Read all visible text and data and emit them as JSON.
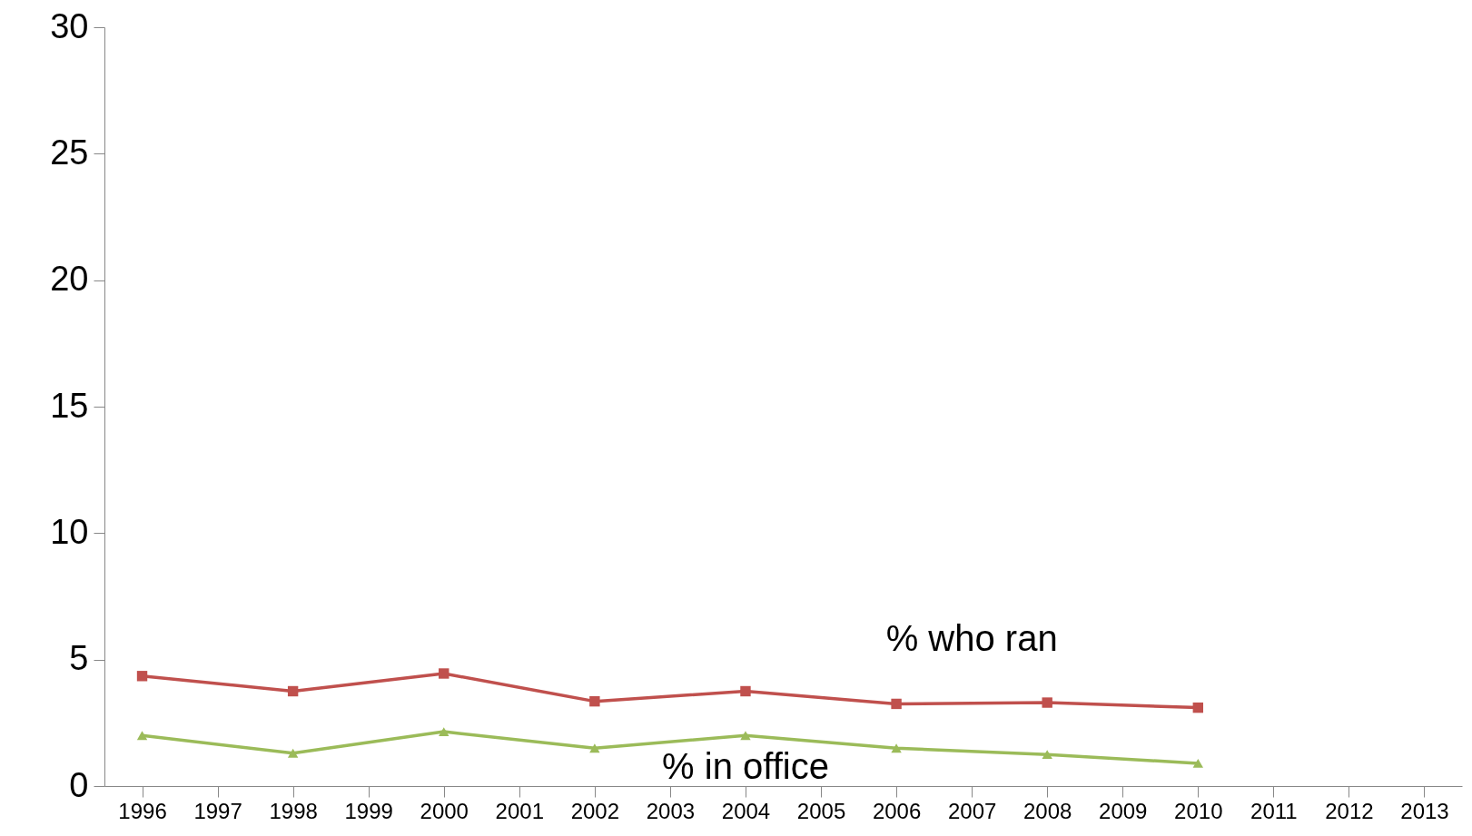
{
  "chart_data": {
    "type": "line",
    "categories": [
      "1996",
      "1997",
      "1998",
      "1999",
      "2000",
      "2001",
      "2002",
      "2003",
      "2004",
      "2005",
      "2006",
      "2007",
      "2008",
      "2009",
      "2010",
      "2011",
      "2012",
      "2013"
    ],
    "series": [
      {
        "name": "% who ran",
        "color": "#c0504d",
        "marker": "square",
        "values": [
          4.35,
          null,
          3.75,
          null,
          4.45,
          null,
          3.35,
          null,
          3.75,
          null,
          3.25,
          null,
          3.3,
          null,
          3.1,
          null,
          null,
          null
        ]
      },
      {
        "name": "% in office",
        "color": "#9bbb59",
        "marker": "triangle",
        "values": [
          2.0,
          null,
          1.3,
          null,
          2.15,
          null,
          1.5,
          null,
          2.0,
          null,
          1.5,
          null,
          1.25,
          null,
          0.9,
          null,
          null,
          null
        ]
      }
    ],
    "ylim": [
      0,
      30
    ],
    "yticks": [
      0,
      5,
      10,
      15,
      20,
      25,
      30
    ],
    "grid": false,
    "line_style": "solid"
  }
}
